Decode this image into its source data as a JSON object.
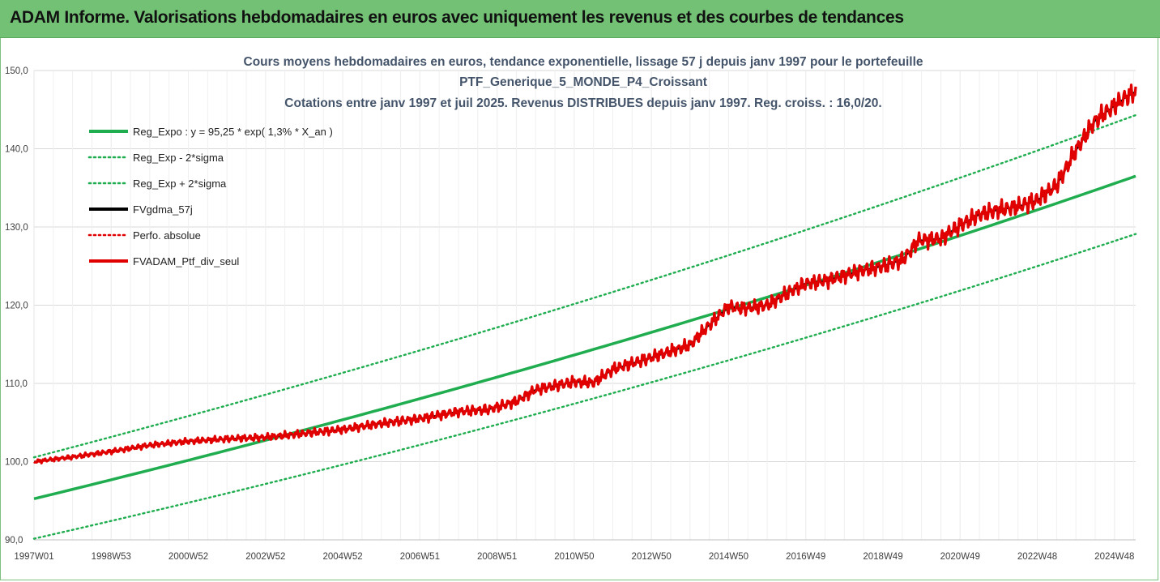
{
  "header": {
    "title": "ADAM Informe. Valorisations hebdomadaires en euros avec uniquement les revenus et des courbes de tendances",
    "bg_color": "#73c175"
  },
  "chart_data": {
    "type": "line",
    "title_lines": [
      "Cours moyens hebdomadaires  en euros, tendance exponentielle, lissage 57 j depuis janv 1997 pour le portefeuille",
      "PTF_Generique_5_MONDE_P4_Croissant",
      "Cotations  entre janv 1997 et juil 2025. Revenus DISTRIBUES depuis janv 1997. Reg. croiss. : 16,0/20."
    ],
    "x_tick_labels": [
      "1997W01",
      "1998W53",
      "2000W52",
      "2002W52",
      "2004W52",
      "2006W51",
      "2008W51",
      "2010W50",
      "2012W50",
      "2014W50",
      "2016W49",
      "2018W49",
      "2020W49",
      "2022W48",
      "2024W48"
    ],
    "x_tick_years": [
      1997.0,
      1999.0,
      2001.0,
      2003.0,
      2005.0,
      2007.0,
      2009.0,
      2011.0,
      2013.0,
      2015.0,
      2017.0,
      2019.0,
      2021.0,
      2023.0,
      2025.0
    ],
    "x_range_years": [
      1997.0,
      2025.55
    ],
    "y_ticks": [
      "90,0",
      "100,0",
      "110,0",
      "120,0",
      "130,0",
      "140,0",
      "150,0"
    ],
    "y_tick_values": [
      90,
      100,
      110,
      120,
      130,
      140,
      150
    ],
    "ylim": [
      90,
      150
    ],
    "grid": true,
    "legend_position": "top-left",
    "trend": {
      "y0": 95.25,
      "y_end": 136.5,
      "lower_offset_start": -5.1,
      "lower_offset_end": -7.4,
      "upper_offset_start": 5.3,
      "upper_offset_end": 7.8
    },
    "series": [
      {
        "name": "Reg_Expo : y = 95,25 * exp( 1,3% *  X_an )",
        "color": "#1fad4f",
        "style": "solid-thick",
        "kind": "trend"
      },
      {
        "name": "Reg_Exp - 2*sigma",
        "color": "#1fad4f",
        "style": "dotted",
        "kind": "lower"
      },
      {
        "name": "Reg_Exp + 2*sigma",
        "color": "#1fad4f",
        "style": "dotted",
        "kind": "upper"
      },
      {
        "name": "FVgdma_57j",
        "color": "#000000",
        "style": "solid",
        "kind": "smooth"
      },
      {
        "name": "Perfo. absolue",
        "color": "#e00000",
        "style": "dotted",
        "kind": "none"
      },
      {
        "name": "FVADAM_Ptf_div_seul",
        "color": "#e00000",
        "style": "solid-thick",
        "kind": "portfolio",
        "x": [
          1997.0,
          1998.0,
          1999.0,
          2000.0,
          2001.0,
          2002.0,
          2003.0,
          2004.0,
          2005.0,
          2006.0,
          2007.0,
          2008.0,
          2008.8,
          2009.5,
          2010.0,
          2011.0,
          2011.5,
          2012.0,
          2013.0,
          2014.0,
          2014.5,
          2015.0,
          2015.3,
          2015.6,
          2016.0,
          2016.5,
          2017.0,
          2017.5,
          2018.0,
          2018.5,
          2019.0,
          2019.5,
          2019.7,
          2019.9,
          2020.0,
          2020.5,
          2021.0,
          2021.5,
          2022.0,
          2022.5,
          2023.0,
          2023.5,
          2024.0,
          2024.5,
          2025.0,
          2025.3,
          2025.55
        ],
        "y": [
          100.0,
          100.6,
          101.3,
          102.1,
          102.6,
          102.9,
          103.1,
          103.6,
          104.1,
          104.9,
          105.5,
          106.4,
          106.7,
          107.7,
          109.2,
          110.2,
          110.1,
          111.8,
          113.3,
          114.9,
          117.5,
          119.8,
          119.6,
          119.7,
          120.0,
          121.5,
          122.8,
          123.1,
          123.8,
          124.5,
          125.0,
          125.8,
          126.9,
          128.2,
          128.3,
          128.5,
          130.2,
          131.6,
          132.2,
          132.6,
          133.4,
          135.3,
          139.8,
          143.6,
          145.5,
          146.6,
          147.3
        ]
      }
    ]
  }
}
